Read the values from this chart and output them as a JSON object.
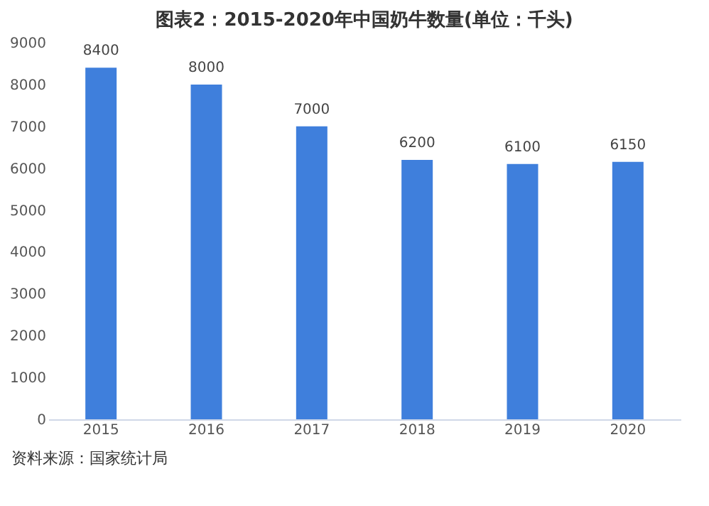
{
  "chart_data": {
    "type": "bar",
    "title": "图表2：2015-2020年中国奶牛数量(单位：千头)",
    "categories": [
      "2015",
      "2016",
      "2017",
      "2018",
      "2019",
      "2020"
    ],
    "values": [
      8400,
      8000,
      7000,
      6200,
      6100,
      6150
    ],
    "color": "#3f7fdc",
    "ylim": [
      0,
      9000
    ],
    "yticks": [
      0,
      1000,
      2000,
      3000,
      4000,
      5000,
      6000,
      7000,
      8000,
      9000
    ],
    "grid": false,
    "data_labels": true,
    "annotations": [
      "资料来源：国家统计局"
    ]
  }
}
